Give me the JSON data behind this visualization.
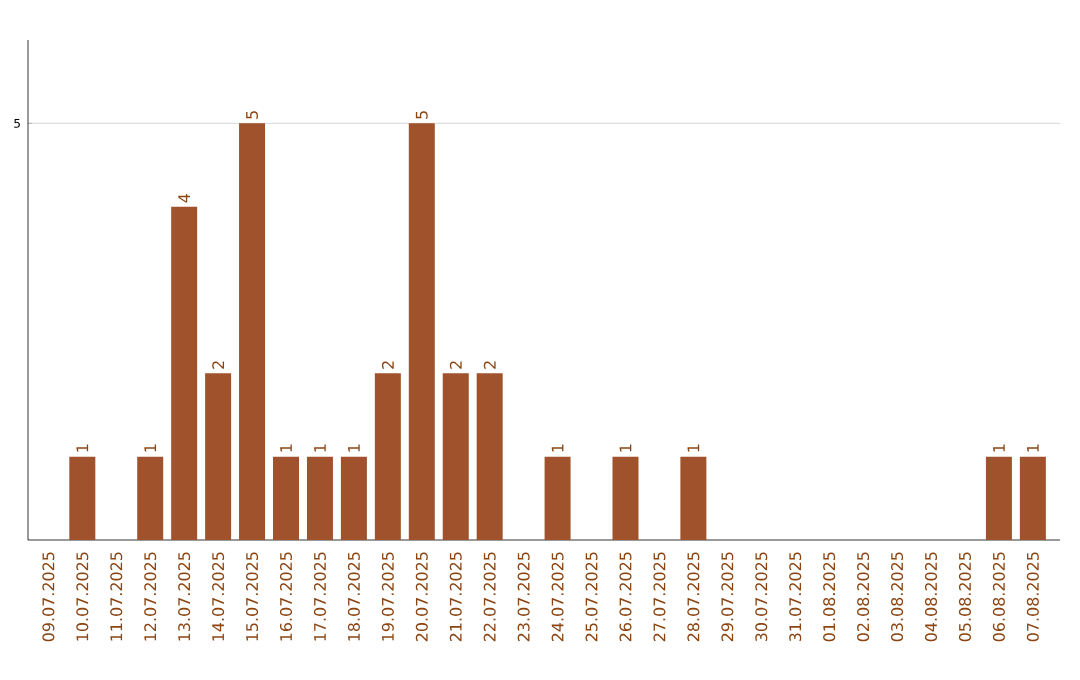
{
  "chart_data": {
    "type": "bar",
    "categories": [
      "09.07.2025",
      "10.07.2025",
      "11.07.2025",
      "12.07.2025",
      "13.07.2025",
      "14.07.2025",
      "15.07.2025",
      "16.07.2025",
      "17.07.2025",
      "18.07.2025",
      "19.07.2025",
      "20.07.2025",
      "21.07.2025",
      "22.07.2025",
      "23.07.2025",
      "24.07.2025",
      "25.07.2025",
      "26.07.2025",
      "27.07.2025",
      "28.07.2025",
      "29.07.2025",
      "30.07.2025",
      "31.07.2025",
      "01.08.2025",
      "02.08.2025",
      "03.08.2025",
      "04.08.2025",
      "05.08.2025",
      "06.08.2025",
      "07.08.2025"
    ],
    "values": [
      0,
      1,
      0,
      1,
      4,
      2,
      5,
      1,
      1,
      1,
      2,
      5,
      2,
      2,
      0,
      1,
      0,
      1,
      0,
      1,
      0,
      0,
      0,
      0,
      0,
      0,
      0,
      0,
      1,
      1
    ],
    "value_labels": [
      null,
      "1",
      null,
      "1",
      "4",
      "2",
      "5",
      "1",
      "1",
      "1",
      "2",
      "5",
      "2",
      "2",
      null,
      "1",
      null,
      "1",
      null,
      "1",
      null,
      null,
      null,
      null,
      null,
      null,
      null,
      null,
      "1",
      "1"
    ],
    "color": "#a0522d",
    "ylim": [
      0,
      6
    ],
    "yticks": [
      5
    ],
    "grid": "y"
  }
}
